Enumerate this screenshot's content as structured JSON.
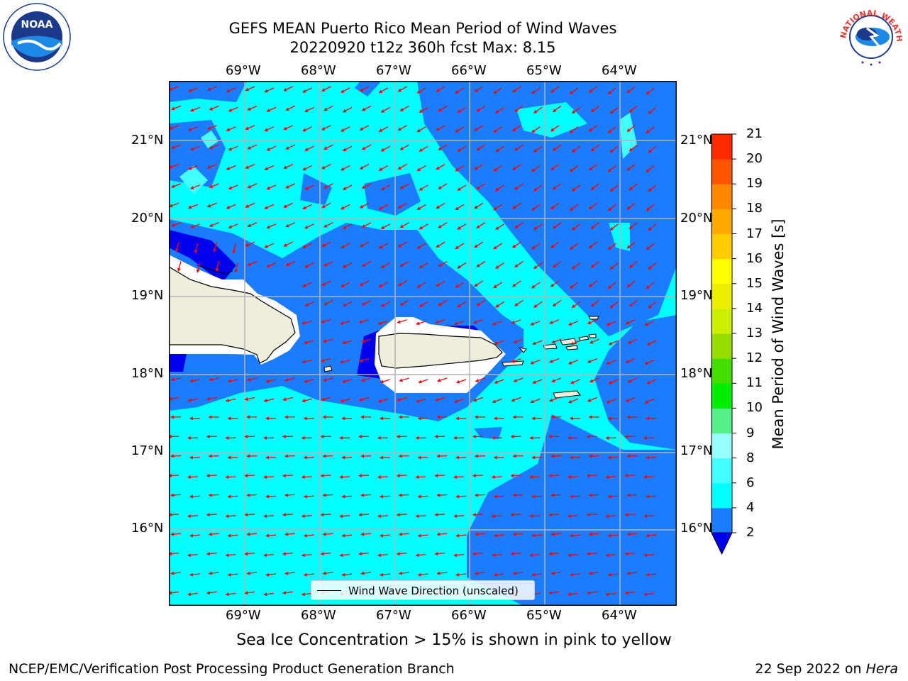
{
  "title_line1": "GEFS MEAN Puerto Rico Mean Period of Wind Waves",
  "title_line2": "20220920 t12z 360h fcst   Max: 8.15",
  "lon_labels": [
    "69°W",
    "68°W",
    "67°W",
    "66°W",
    "65°W",
    "64°W"
  ],
  "lat_labels": [
    "21°N",
    "20°N",
    "19°N",
    "18°N",
    "17°N",
    "16°N"
  ],
  "legend_label": "Wind Wave Direction (unscaled)",
  "colorbar": {
    "label": "Mean Period of Wind Waves [s]",
    "ticks": [
      "2",
      "4",
      "6",
      "8",
      "9",
      "10",
      "11",
      "12",
      "13",
      "14",
      "15",
      "16",
      "17",
      "18",
      "19",
      "20",
      "21"
    ],
    "colors": [
      "#1a7cff",
      "#00ffff",
      "#44ffff",
      "#99ffff",
      "#55ee88",
      "#00ee00",
      "#44dd00",
      "#99dd00",
      "#ccee00",
      "#eeee00",
      "#ffff00",
      "#ffcc00",
      "#ffaa00",
      "#ff8800",
      "#ff5500",
      "#ff2a00",
      "#ff0000"
    ],
    "under_color": "#0000ee"
  },
  "map_colors": {
    "ocean_low": "#1a7cff",
    "ocean_mid": "#00ffff",
    "ocean_deep": "#0000ee",
    "land": "#efeedd",
    "arrow": "#ff0000",
    "grid": "#b4b4b4"
  },
  "map_extent": {
    "lon_min": -70.0,
    "lon_max": -63.25,
    "lat_min": 15.0,
    "lat_max": 21.75
  },
  "ice_note": "Sea Ice Concentration > 15% is shown in pink to yellow",
  "footer_left": "NCEP/EMC/Verification Post Processing Product Generation Branch",
  "footer_right_prefix": "22 Sep 2022 on ",
  "footer_right_host": "Hera",
  "logos": {
    "noaa_text": "NOAA",
    "nws_text": "NATIONAL WEATHER SERVICE"
  }
}
